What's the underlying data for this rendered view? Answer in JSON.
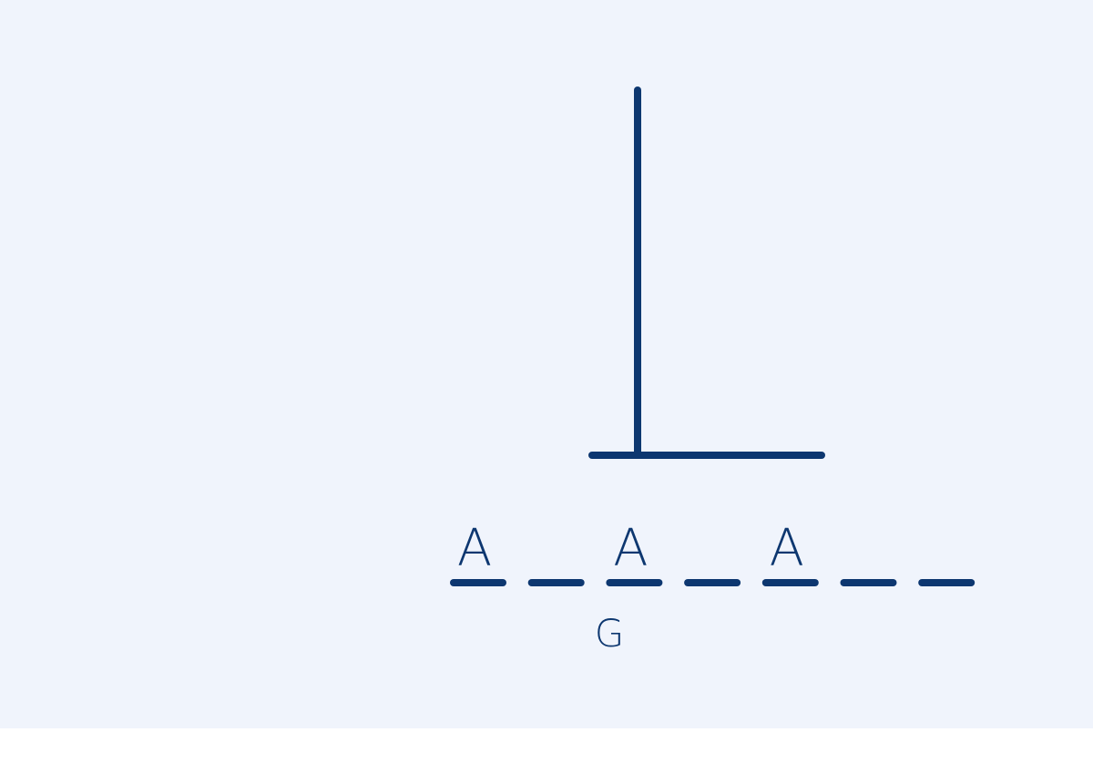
{
  "game": {
    "slots": [
      {
        "letter": "A"
      },
      {
        "letter": ""
      },
      {
        "letter": "A"
      },
      {
        "letter": ""
      },
      {
        "letter": "A"
      },
      {
        "letter": ""
      },
      {
        "letter": ""
      }
    ],
    "wrong_guesses": [
      "G"
    ],
    "wrong_guess_count": 1
  },
  "colors": {
    "background": "#f0f4fc",
    "ink": "#0d3770",
    "page_bottom": "#ffffff"
  },
  "icons": {
    "gallows": "hangman-gallows-icon"
  }
}
